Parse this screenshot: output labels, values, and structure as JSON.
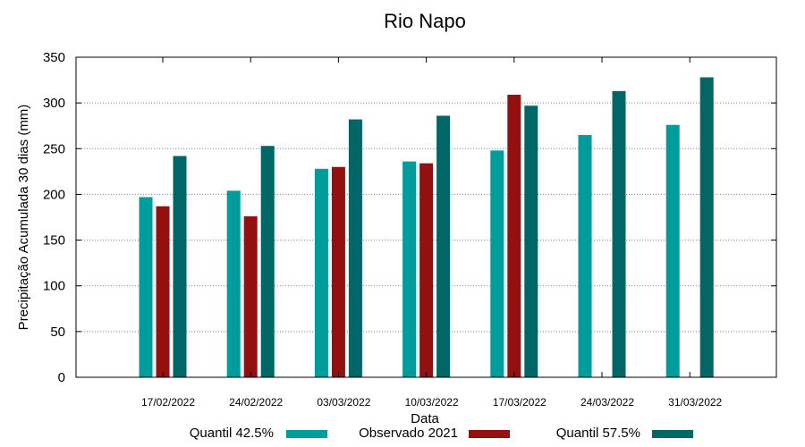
{
  "chart_data": {
    "type": "bar",
    "title": "Rio Napo",
    "xlabel": "Data",
    "ylabel": "Precipitação Acumulada 30 dias (mm)",
    "ylim": [
      0,
      350
    ],
    "yticks": [
      0,
      50,
      100,
      150,
      200,
      250,
      300,
      350
    ],
    "grid": true,
    "legend": "bottom",
    "categories": [
      "17/02/2022",
      "24/02/2022",
      "03/03/2022",
      "10/03/2022",
      "17/03/2022",
      "24/03/2022",
      "31/03/2022"
    ],
    "series": [
      {
        "name": "Quantil 42.5%",
        "color": "#009b9b",
        "values": [
          197,
          204,
          228,
          236,
          248,
          265,
          276
        ]
      },
      {
        "name": "Observado 2021",
        "color": "#941010",
        "values": [
          187,
          176,
          230,
          234,
          309,
          null,
          null
        ]
      },
      {
        "name": "Quantil 57.5%",
        "color": "#006666",
        "values": [
          242,
          253,
          282,
          286,
          297,
          313,
          328
        ]
      }
    ]
  }
}
